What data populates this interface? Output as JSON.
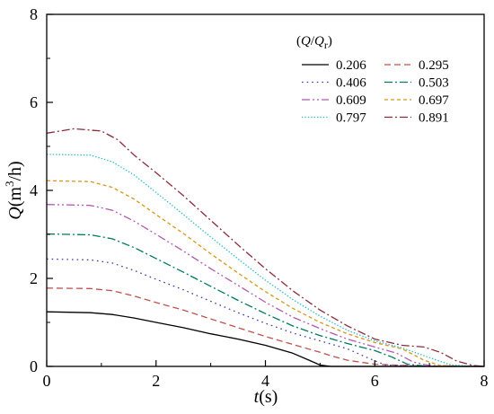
{
  "chart_data": {
    "type": "line",
    "xlabel": "t(s)",
    "xlabel_italic": "t",
    "xlabel_unit": "(s)",
    "ylabel": "Q(m3/h)",
    "ylabel_italic": "Q",
    "ylabel_unit_pre": "(m",
    "ylabel_unit_sup": "3",
    "ylabel_unit_post": "/h)",
    "xlim": [
      0,
      8
    ],
    "ylim": [
      0,
      8
    ],
    "xticks": [
      "0",
      "2",
      "4",
      "6",
      "8"
    ],
    "yticks": [
      "0",
      "2",
      "4",
      "6",
      "8"
    ],
    "grid": false,
    "legend": {
      "placement": "top-right",
      "title": "(Q/Qr)",
      "title_q": "Q",
      "title_slash": "/",
      "title_qr": "Q",
      "title_sub": "r",
      "columns": 2
    },
    "series": [
      {
        "name": "0.206",
        "color": "#000000",
        "dash": "",
        "x": [
          0,
          0.8,
          1.2,
          1.6,
          2.0,
          2.5,
          3.0,
          3.5,
          4.0,
          4.5,
          4.8,
          5.0,
          5.2,
          6.0,
          7.0,
          8.0
        ],
        "y": [
          1.24,
          1.22,
          1.18,
          1.1,
          1.0,
          0.88,
          0.74,
          0.62,
          0.48,
          0.3,
          0.14,
          0.03,
          0.0,
          0.0,
          0.0,
          0.0
        ]
      },
      {
        "name": "0.295",
        "color": "#c0504d",
        "dash": "7,4",
        "x": [
          0,
          0.8,
          1.2,
          1.6,
          2.0,
          2.5,
          3.0,
          3.5,
          4.0,
          4.5,
          5.0,
          5.2,
          5.5,
          6.0,
          7.0,
          8.0
        ],
        "y": [
          1.78,
          1.77,
          1.72,
          1.6,
          1.45,
          1.28,
          1.08,
          0.88,
          0.68,
          0.5,
          0.32,
          0.24,
          0.14,
          0.05,
          0.0,
          0.0
        ]
      },
      {
        "name": "0.406",
        "color": "#3a3ab8",
        "dash": "1.6,4",
        "x": [
          0,
          0.8,
          1.2,
          1.6,
          2.0,
          2.5,
          3.0,
          3.5,
          4.0,
          4.5,
          5.0,
          5.5,
          5.9,
          6.2,
          7.0,
          8.0
        ],
        "y": [
          2.44,
          2.42,
          2.35,
          2.18,
          1.98,
          1.74,
          1.48,
          1.22,
          0.98,
          0.76,
          0.58,
          0.4,
          0.18,
          0.03,
          0.0,
          0.0
        ]
      },
      {
        "name": "0.503",
        "color": "#007a5e",
        "dash": "9,3,2,3",
        "x": [
          0,
          0.8,
          1.2,
          1.6,
          2.0,
          2.5,
          3.0,
          3.5,
          4.0,
          4.5,
          5.0,
          5.5,
          6.0,
          6.3,
          6.6,
          7.0,
          8.0
        ],
        "y": [
          3.01,
          2.99,
          2.9,
          2.7,
          2.45,
          2.14,
          1.82,
          1.5,
          1.2,
          0.92,
          0.7,
          0.52,
          0.36,
          0.22,
          0.05,
          0.0,
          0.0
        ]
      },
      {
        "name": "0.609",
        "color": "#b259b2",
        "dash": "9,3,2,3,2,3",
        "x": [
          0,
          0.8,
          1.2,
          1.6,
          2.0,
          2.5,
          3.0,
          3.5,
          4.0,
          4.5,
          5.0,
          5.5,
          6.0,
          6.4,
          6.7,
          7.0,
          8.0
        ],
        "y": [
          3.68,
          3.66,
          3.55,
          3.3,
          3.0,
          2.62,
          2.22,
          1.84,
          1.46,
          1.12,
          0.86,
          0.62,
          0.44,
          0.3,
          0.1,
          0.02,
          0.0
        ]
      },
      {
        "name": "0.697",
        "color": "#d9961a",
        "dash": "4,3",
        "x": [
          0,
          0.8,
          1.2,
          1.6,
          2.0,
          2.5,
          3.0,
          3.5,
          4.0,
          4.5,
          5.0,
          5.5,
          6.0,
          6.5,
          6.9,
          7.2,
          8.0
        ],
        "y": [
          4.22,
          4.2,
          4.07,
          3.8,
          3.45,
          3.02,
          2.56,
          2.12,
          1.7,
          1.32,
          1.0,
          0.74,
          0.54,
          0.4,
          0.14,
          0.02,
          0.0
        ]
      },
      {
        "name": "0.797",
        "color": "#2cb7cf",
        "dash": "1.4,2",
        "x": [
          0,
          0.8,
          1.2,
          1.6,
          2.0,
          2.5,
          3.0,
          3.5,
          4.0,
          4.5,
          5.0,
          5.5,
          6.0,
          6.5,
          7.0,
          7.4,
          8.0
        ],
        "y": [
          4.82,
          4.8,
          4.65,
          4.35,
          3.95,
          3.45,
          2.94,
          2.44,
          1.96,
          1.52,
          1.14,
          0.82,
          0.58,
          0.42,
          0.2,
          0.03,
          0.0
        ]
      },
      {
        "name": "0.891",
        "color": "#8b2b3a",
        "dash": "9,3,2,3",
        "x": [
          0,
          0.5,
          1.0,
          1.3,
          1.6,
          2.0,
          2.5,
          3.0,
          3.5,
          4.0,
          4.5,
          5.0,
          5.5,
          6.0,
          6.5,
          6.9,
          7.2,
          7.5,
          7.8,
          8.0
        ],
        "y": [
          5.3,
          5.4,
          5.35,
          5.15,
          4.8,
          4.4,
          3.88,
          3.32,
          2.76,
          2.22,
          1.72,
          1.28,
          0.92,
          0.62,
          0.48,
          0.44,
          0.32,
          0.12,
          0.02,
          0.0
        ]
      }
    ]
  }
}
